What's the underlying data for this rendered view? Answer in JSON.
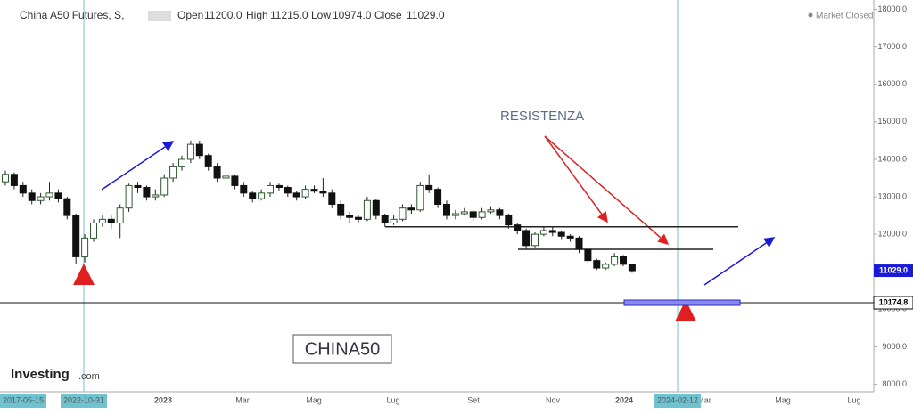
{
  "chart_data": {
    "type": "candlestick",
    "symbol": "China A50 Futures, S,",
    "open_label": "Open",
    "open": "11200.0",
    "high_label": "High",
    "high": "11215.0",
    "low_label": "Low",
    "low": "10974.0",
    "close_label": "Close",
    "close": "11029.0",
    "status": "Market Closed",
    "annotation": "RESISTENZA",
    "watermark": "CHINA50",
    "brand": "Investing",
    "brand_suffix": ".com",
    "ylim": [
      7800,
      18250
    ],
    "yticks": [
      {
        "value": 8000,
        "label": "8000.0"
      },
      {
        "value": 9000,
        "label": "9000.0"
      },
      {
        "value": 10000,
        "label": "10000.0"
      },
      {
        "value": 11000,
        "label": "11000.0"
      },
      {
        "value": 12000,
        "label": "12000.0"
      },
      {
        "value": 13000,
        "label": "13000.0"
      },
      {
        "value": 14000,
        "label": "14000.0"
      },
      {
        "value": 15000,
        "label": "15000.0"
      },
      {
        "value": 16000,
        "label": "16000.0"
      },
      {
        "value": 17000,
        "label": "17000.0"
      },
      {
        "value": 18000,
        "label": "18000.0"
      }
    ],
    "x_labels": [
      "2023",
      "Mar",
      "Mag",
      "Lug",
      "Set",
      "Nov",
      "2024",
      "Mar",
      "Mag",
      "Lug"
    ],
    "date_markers": [
      "2017-05-15",
      "2022-10-31",
      "2024-02-12"
    ],
    "last_price": {
      "value": 11029,
      "label": "11029.0"
    },
    "support": 10174.8,
    "resistance_levels": [
      12200,
      11600
    ],
    "candles": [
      [
        13400,
        13700,
        13300,
        13600
      ],
      [
        13600,
        13650,
        13200,
        13300
      ],
      [
        13300,
        13400,
        13000,
        13100
      ],
      [
        13100,
        13200,
        12800,
        12900
      ],
      [
        12900,
        13100,
        12800,
        13000
      ],
      [
        13000,
        13400,
        12900,
        13100
      ],
      [
        13100,
        13200,
        12850,
        12950
      ],
      [
        12950,
        13000,
        12400,
        12500
      ],
      [
        12500,
        12550,
        11200,
        11400
      ],
      [
        11400,
        12000,
        11250,
        11900
      ],
      [
        11900,
        12400,
        11800,
        12300
      ],
      [
        12300,
        12500,
        12200,
        12400
      ],
      [
        12400,
        12500,
        12150,
        12300
      ],
      [
        12300,
        12800,
        11900,
        12700
      ],
      [
        12700,
        13350,
        12600,
        13300
      ],
      [
        13300,
        13400,
        13100,
        13250
      ],
      [
        13250,
        13300,
        12900,
        13000
      ],
      [
        13000,
        13200,
        12900,
        13050
      ],
      [
        13050,
        13600,
        13000,
        13500
      ],
      [
        13500,
        13900,
        13400,
        13800
      ],
      [
        13800,
        14100,
        13700,
        14000
      ],
      [
        14000,
        14500,
        13900,
        14400
      ],
      [
        14400,
        14500,
        14000,
        14100
      ],
      [
        14100,
        14150,
        13700,
        13800
      ],
      [
        13800,
        13900,
        13400,
        13500
      ],
      [
        13500,
        13700,
        13400,
        13550
      ],
      [
        13550,
        13600,
        13200,
        13300
      ],
      [
        13300,
        13400,
        13000,
        13100
      ],
      [
        13100,
        13150,
        12850,
        12950
      ],
      [
        12950,
        13200,
        12900,
        13100
      ],
      [
        13100,
        13400,
        13000,
        13300
      ],
      [
        13300,
        13350,
        13150,
        13250
      ],
      [
        13250,
        13300,
        13000,
        13100
      ],
      [
        13100,
        13150,
        12900,
        13000
      ],
      [
        13000,
        13300,
        12950,
        13200
      ],
      [
        13200,
        13300,
        13100,
        13150
      ],
      [
        13150,
        13500,
        13000,
        13100
      ],
      [
        13100,
        13200,
        12700,
        12800
      ],
      [
        12800,
        12900,
        12400,
        12500
      ],
      [
        12500,
        12600,
        12300,
        12450
      ],
      [
        12450,
        12500,
        12300,
        12400
      ],
      [
        12400,
        13000,
        12350,
        12900
      ],
      [
        12900,
        12950,
        12400,
        12500
      ],
      [
        12500,
        12550,
        12200,
        12300
      ],
      [
        12300,
        12500,
        12250,
        12400
      ],
      [
        12400,
        12800,
        12350,
        12700
      ],
      [
        12700,
        12800,
        12550,
        12650
      ],
      [
        12650,
        13400,
        12600,
        13300
      ],
      [
        13300,
        13600,
        13100,
        13200
      ],
      [
        13200,
        13250,
        12700,
        12800
      ],
      [
        12800,
        12900,
        12400,
        12500
      ],
      [
        12500,
        12650,
        12400,
        12550
      ],
      [
        12550,
        12700,
        12500,
        12600
      ],
      [
        12600,
        12650,
        12350,
        12450
      ],
      [
        12450,
        12700,
        12400,
        12600
      ],
      [
        12600,
        12750,
        12550,
        12650
      ],
      [
        12650,
        12700,
        12400,
        12500
      ],
      [
        12500,
        12550,
        12150,
        12250
      ],
      [
        12250,
        12300,
        12000,
        12100
      ],
      [
        12100,
        12150,
        11600,
        11700
      ],
      [
        11700,
        12050,
        11650,
        12000
      ],
      [
        12000,
        12200,
        11950,
        12100
      ],
      [
        12100,
        12200,
        11950,
        12050
      ],
      [
        12050,
        12100,
        11850,
        11950
      ],
      [
        11950,
        12000,
        11800,
        11900
      ],
      [
        11900,
        11950,
        11500,
        11600
      ],
      [
        11600,
        11650,
        11200,
        11300
      ],
      [
        11300,
        11350,
        11050,
        11100
      ],
      [
        11100,
        11250,
        11050,
        11200
      ],
      [
        11200,
        11500,
        11150,
        11400
      ],
      [
        11400,
        11450,
        11150,
        11200
      ],
      [
        11200,
        11215,
        10974,
        11029
      ]
    ]
  }
}
